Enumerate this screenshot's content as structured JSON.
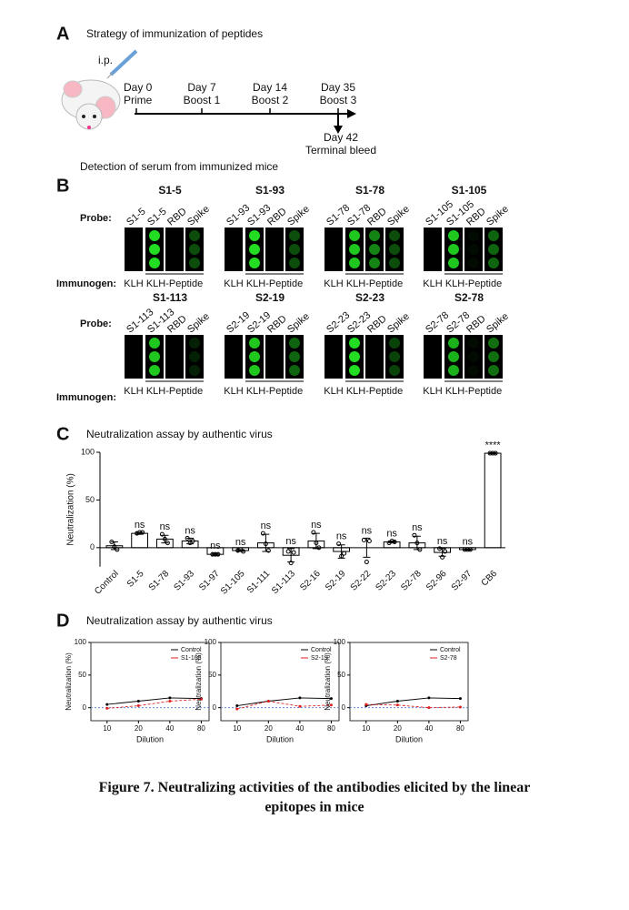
{
  "panel_a": {
    "label": "A",
    "title": "Strategy of immunization of peptides",
    "route": "i.p.",
    "events": [
      {
        "day": "Day 0",
        "name": "Prime"
      },
      {
        "day": "Day 7",
        "name": "Boost 1"
      },
      {
        "day": "Day 14",
        "name": "Boost 2"
      },
      {
        "day": "Day 35",
        "name": "Boost 3"
      }
    ],
    "terminal": {
      "day": "Day 42",
      "name": "Terminal bleed"
    },
    "detection": "Detection of serum from immunized mice"
  },
  "panel_b": {
    "label": "B",
    "probe_label": "Probe:",
    "immunogen_label": "Immunogen:",
    "blots": [
      {
        "title": "S1-5",
        "probes": [
          "S1-5",
          "S1-5",
          "RBD",
          "Spike"
        ],
        "immunogens": [
          "KLH",
          "KLH-Peptide"
        ]
      },
      {
        "title": "S1-93",
        "probes": [
          "S1-93",
          "S1-93",
          "RBD",
          "Spike"
        ],
        "immunogens": [
          "KLH",
          "KLH-Peptide"
        ]
      },
      {
        "title": "S1-78",
        "probes": [
          "S1-78",
          "S1-78",
          "RBD",
          "Spike"
        ],
        "immunogens": [
          "KLH",
          "KLH-Peptide"
        ]
      },
      {
        "title": "S1-105",
        "probes": [
          "S1-105",
          "S1-105",
          "RBD",
          "Spike"
        ],
        "immunogens": [
          "KLH",
          "KLH-Peptide"
        ]
      },
      {
        "title": "S1-113",
        "probes": [
          "S1-113",
          "S1-113",
          "RBD",
          "Spike"
        ],
        "immunogens": [
          "KLH",
          "KLH-Peptide"
        ]
      },
      {
        "title": "S2-19",
        "probes": [
          "S2-19",
          "S2-19",
          "RBD",
          "Spike"
        ],
        "immunogens": [
          "KLH",
          "KLH-Peptide"
        ]
      },
      {
        "title": "S2-23",
        "probes": [
          "S2-23",
          "S2-23",
          "RBD",
          "Spike"
        ],
        "immunogens": [
          "KLH",
          "KLH-Peptide"
        ]
      },
      {
        "title": "S2-78",
        "probes": [
          "S2-78",
          "S2-78",
          "RBD",
          "Spike"
        ],
        "immunogens": [
          "KLH",
          "KLH-Peptide"
        ]
      }
    ]
  },
  "panel_c": {
    "label": "C",
    "type": "bar",
    "title": "Neutralization assay by authentic virus",
    "ylabel": "Neutralization (%)",
    "categories": [
      "Control",
      "S1-5",
      "S1-78",
      "S1-93",
      "S1-97",
      "S1-105",
      "S1-111",
      "S1-113",
      "S2-16",
      "S2-19",
      "S2-22",
      "S2-23",
      "S2-78",
      "S2-96",
      "S2-97",
      "CB6"
    ],
    "values": [
      2,
      15,
      9,
      7,
      -7,
      -3,
      5,
      -8,
      7,
      -4,
      0,
      6,
      5,
      -5,
      -2,
      99
    ],
    "errors": [
      4,
      1,
      4,
      3,
      1,
      1,
      9,
      7,
      8,
      7,
      10,
      1,
      7,
      4,
      0.5,
      0.5
    ],
    "points": [
      [
        6,
        1,
        -2
      ],
      [
        15,
        16,
        16
      ],
      [
        14,
        9,
        5
      ],
      [
        10,
        5,
        7
      ],
      [
        -7,
        -7,
        -7
      ],
      [
        -3,
        -2,
        -4
      ],
      [
        15,
        4,
        -3
      ],
      [
        -4,
        -16,
        -5
      ],
      [
        16,
        5,
        0
      ],
      [
        4,
        -9,
        -6
      ],
      [
        8,
        -15,
        7
      ],
      [
        5,
        7,
        6
      ],
      [
        13,
        5,
        -2
      ],
      [
        -1,
        -10,
        -4
      ],
      [
        -2,
        -2,
        -2
      ],
      [
        99,
        99,
        99
      ]
    ],
    "significance": [
      null,
      "ns",
      "ns",
      "ns",
      "ns",
      "ns",
      "ns",
      "ns",
      "ns",
      "ns",
      "ns",
      "ns",
      "ns",
      "ns",
      "ns",
      "****"
    ],
    "ylim": [
      -20,
      100
    ],
    "yticks": [
      0,
      50,
      100
    ]
  },
  "panel_d": {
    "label": "D",
    "title": "Neutralization assay by authentic virus",
    "plots": [
      {
        "type": "line",
        "xlabel": "Dilution",
        "ylabel": "Neutralization (%)",
        "x": [
          10,
          20,
          40,
          80
        ],
        "xlim": [
          7,
          95
        ],
        "log_x": true,
        "xticks": [
          10,
          20,
          40,
          80
        ],
        "ylim": [
          -20,
          100
        ],
        "yticks": [
          0,
          50,
          100
        ],
        "series": [
          {
            "name": "Control",
            "color": "#000000",
            "values": [
              5,
              10,
              15,
              14
            ]
          },
          {
            "name": "S1-105",
            "color": "#e02020",
            "values": [
              -1,
              3,
              10,
              13
            ]
          }
        ]
      },
      {
        "type": "line",
        "xlabel": "Dilution",
        "ylabel": "Neutralization (%)",
        "x": [
          10,
          20,
          40,
          80
        ],
        "xlim": [
          7,
          95
        ],
        "log_x": true,
        "xticks": [
          10,
          20,
          40,
          80
        ],
        "ylim": [
          -20,
          100
        ],
        "yticks": [
          0,
          50,
          100
        ],
        "series": [
          {
            "name": "Control",
            "color": "#000000",
            "values": [
              3,
              10,
              15,
              14
            ]
          },
          {
            "name": "S2-19",
            "color": "#e02020",
            "values": [
              -2,
              10,
              2,
              4
            ]
          }
        ]
      },
      {
        "type": "line",
        "xlabel": "Dilution",
        "ylabel": "Neutralization (%)",
        "x": [
          10,
          20,
          40,
          80
        ],
        "xlim": [
          7,
          95
        ],
        "log_x": true,
        "xticks": [
          10,
          20,
          40,
          80
        ],
        "ylim": [
          -20,
          100
        ],
        "yticks": [
          0,
          50,
          100
        ],
        "series": [
          {
            "name": "Control",
            "color": "#000000",
            "values": [
              3,
              10,
              15,
              14
            ]
          },
          {
            "name": "S2-78",
            "color": "#e02020",
            "values": [
              5,
              4,
              0,
              1
            ]
          }
        ]
      }
    ]
  },
  "caption": {
    "figure": "Figure 7",
    "text": ". Neutralizing activities of the antibodies elicited by the linear",
    "text2": "epitopes in mice"
  }
}
